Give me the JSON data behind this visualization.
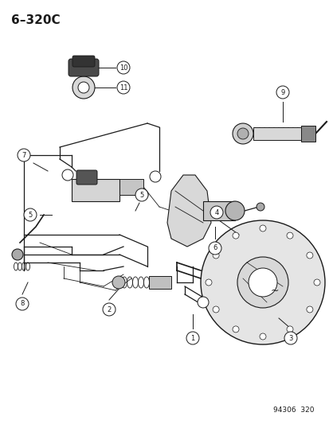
{
  "title": "6–320C",
  "footer": "94306  320",
  "bg_color": "#ffffff",
  "line_color": "#1a1a1a",
  "fig_width": 4.14,
  "fig_height": 5.33,
  "dpi": 100
}
